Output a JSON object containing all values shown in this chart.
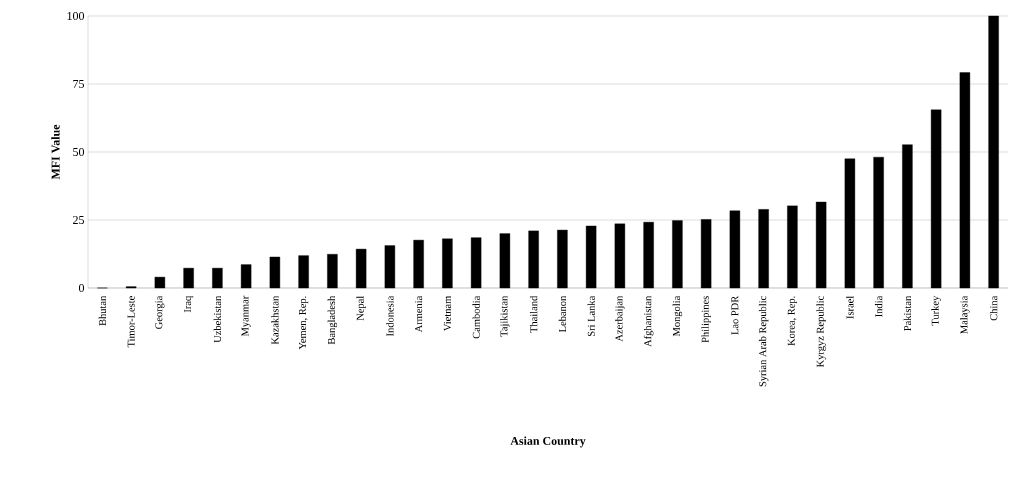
{
  "chart_data": {
    "type": "bar",
    "xlabel": "Asian Country",
    "ylabel": "MFI Value",
    "categories": [
      "Bhutan",
      "Timor-Leste",
      "Georgia",
      "Iraq",
      "Uzbekistan",
      "Myanmar",
      "Kazakhstan",
      "Yemen, Rep.",
      "Bangladesh",
      "Nepal",
      "Indonesia",
      "Armenia",
      "Vietnam",
      "Cambodia",
      "Tajikistan",
      "Thailand",
      "Lebanon",
      "Sri Lanka",
      "Azerbaijan",
      "Afghanistan",
      "Mongolia",
      "Philippines",
      "Lao PDR",
      "Syrian Arab Republic",
      "Korea, Rep.",
      "Kyrgyz Republic",
      "Israel",
      "India",
      "Pakistan",
      "Turkey",
      "Malaysia",
      "China"
    ],
    "values": [
      0,
      0.5,
      4,
      7.3,
      7.3,
      8.6,
      11.4,
      11.9,
      12.4,
      14.3,
      15.6,
      17.6,
      18.1,
      18.5,
      20,
      21,
      21.3,
      22.8,
      23.6,
      24.2,
      24.8,
      25.2,
      28.4,
      28.9,
      30.2,
      31.6,
      47.5,
      48.1,
      52.7,
      65.5,
      79.2,
      100
    ],
    "color": "#000000",
    "ylim": [
      0,
      100
    ],
    "yticks": [
      0,
      25,
      50,
      75,
      100
    ],
    "grid": "y"
  }
}
